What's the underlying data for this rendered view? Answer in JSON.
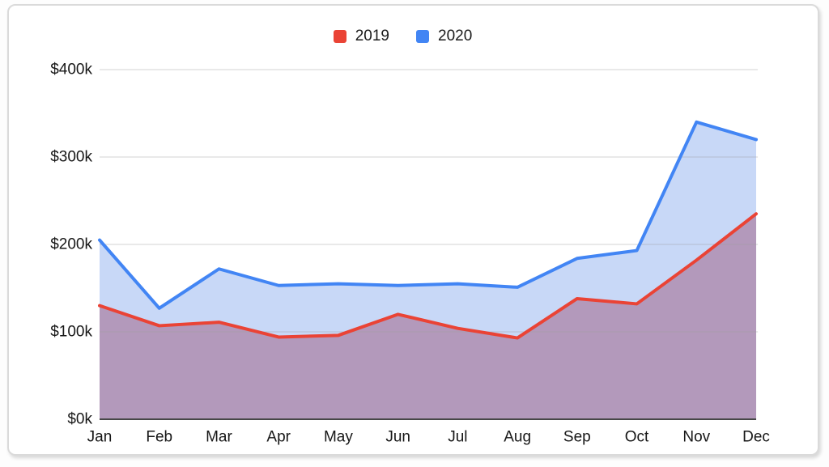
{
  "chart_data": {
    "type": "area",
    "title": "",
    "unit": "USD thousands",
    "categories": [
      "Jan",
      "Feb",
      "Mar",
      "Apr",
      "May",
      "Jun",
      "Jul",
      "Aug",
      "Sep",
      "Oct",
      "Nov",
      "Dec"
    ],
    "series": [
      {
        "name": "2019",
        "line_color": "#EA4335",
        "area_fill": "#B399BB",
        "values": [
          130,
          107,
          111,
          94,
          96,
          120,
          104,
          93,
          138,
          132,
          182,
          235
        ]
      },
      {
        "name": "2020",
        "line_color": "#4285F4",
        "area_fill": "#C8D8F7",
        "values": [
          205,
          127,
          172,
          153,
          155,
          153,
          155,
          151,
          184,
          193,
          340,
          320
        ]
      }
    ],
    "y_axis": {
      "ticks": [
        {
          "label": "$0k",
          "value": 0
        },
        {
          "label": "$100k",
          "value": 100
        },
        {
          "label": "$200k",
          "value": 200
        },
        {
          "label": "$300k",
          "value": 300
        },
        {
          "label": "$400k",
          "value": 400
        }
      ],
      "range": [
        0,
        400
      ]
    },
    "legend_position": "top-center",
    "grid": "horizontal",
    "grid_color": "#d9d9d9",
    "axis_line_color": "#474747",
    "text_color": "#171717"
  }
}
